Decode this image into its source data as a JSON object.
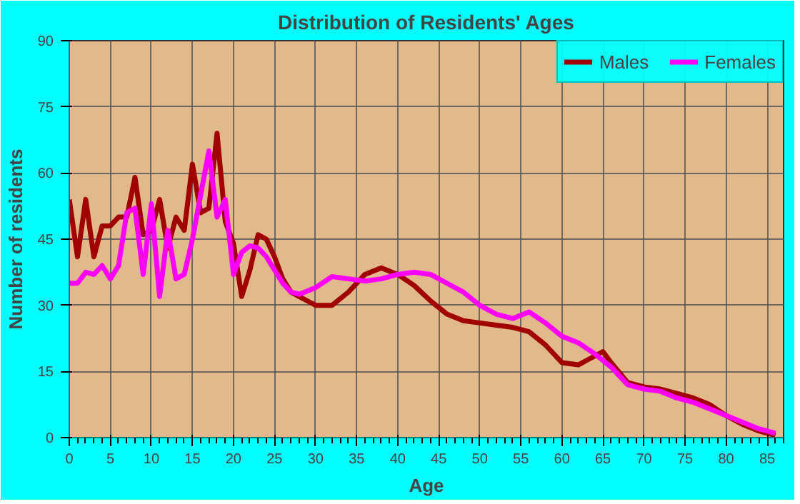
{
  "chart_data": {
    "type": "line",
    "title": "Distribution of Residents' Ages",
    "xlabel": "Age",
    "ylabel": "Number of residents",
    "xlim": [
      0,
      87
    ],
    "ylim": [
      0,
      90
    ],
    "xticks": [
      0,
      5,
      10,
      15,
      20,
      25,
      30,
      35,
      40,
      45,
      50,
      55,
      60,
      65,
      70,
      75,
      80,
      85
    ],
    "yticks": [
      0,
      15,
      30,
      45,
      60,
      75,
      90
    ],
    "grid": true,
    "legend": "top right",
    "marker": "none",
    "line_style": "solid",
    "series": [
      {
        "name": "Males",
        "color": "#a00000",
        "x": [
          0,
          1,
          2,
          3,
          4,
          5,
          6,
          7,
          8,
          9,
          10,
          11,
          12,
          13,
          14,
          15,
          16,
          17,
          18,
          19,
          20,
          21,
          22,
          23,
          24,
          25,
          26,
          27,
          28,
          29,
          30,
          32,
          34,
          36,
          38,
          40,
          42,
          44,
          46,
          48,
          50,
          52,
          54,
          56,
          58,
          60,
          62,
          64,
          65,
          66,
          68,
          70,
          72,
          74,
          76,
          78,
          80,
          82,
          84,
          86
        ],
        "values": [
          54,
          41,
          54,
          41,
          48,
          48,
          50,
          50,
          59,
          46,
          47,
          54,
          43,
          50,
          47,
          62,
          51,
          52,
          69,
          49,
          44,
          32,
          38,
          46,
          45,
          41,
          36,
          33,
          32,
          31,
          30,
          30,
          33,
          37,
          38.5,
          37,
          34.5,
          31,
          28,
          26.5,
          26,
          25.5,
          25,
          24,
          21,
          17,
          16.5,
          18.5,
          19.5,
          17,
          12.5,
          11.5,
          11,
          10,
          9,
          7.5,
          5,
          3,
          1.5,
          0.5
        ]
      },
      {
        "name": "Females",
        "color": "#ff00ff",
        "x": [
          0,
          1,
          2,
          3,
          4,
          5,
          6,
          7,
          8,
          9,
          10,
          11,
          12,
          13,
          14,
          15,
          16,
          17,
          18,
          19,
          20,
          21,
          22,
          23,
          24,
          25,
          26,
          27,
          28,
          30,
          32,
          34,
          36,
          38,
          40,
          42,
          44,
          46,
          48,
          50,
          52,
          54,
          56,
          58,
          60,
          62,
          64,
          66,
          68,
          70,
          72,
          74,
          76,
          78,
          80,
          82,
          84,
          86
        ],
        "values": [
          35,
          35,
          37.5,
          37,
          39,
          36,
          39,
          51,
          52,
          37,
          53,
          32,
          47,
          36,
          37,
          45,
          55,
          65,
          50,
          54,
          37,
          42,
          43.5,
          43,
          41,
          38,
          35,
          33,
          32.5,
          34,
          36.5,
          36,
          35.5,
          36,
          37,
          37.5,
          37,
          35,
          33,
          30,
          28,
          27,
          28.5,
          26,
          23,
          21.5,
          19,
          16,
          12,
          11,
          10.5,
          9,
          8,
          6.5,
          5,
          3.5,
          2,
          1
        ]
      }
    ]
  }
}
